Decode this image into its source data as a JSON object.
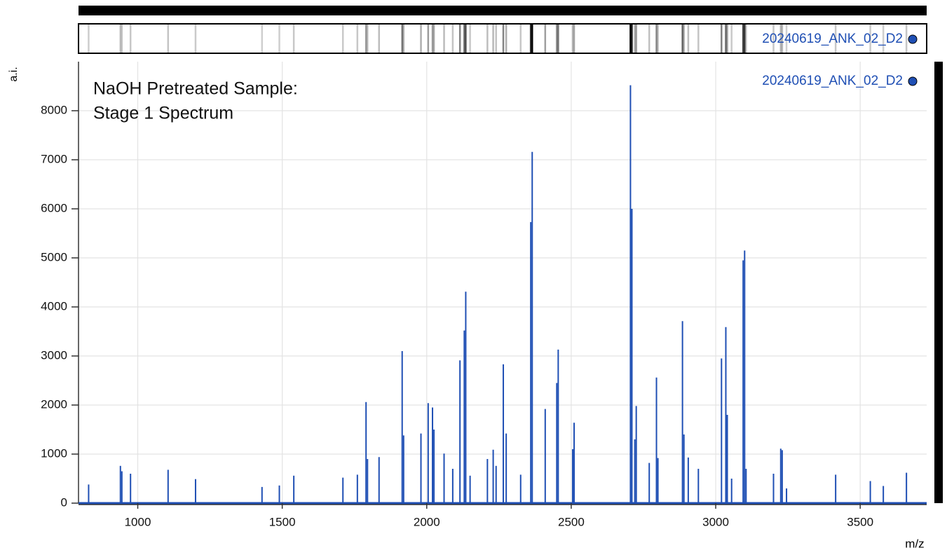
{
  "chart_data": {
    "type": "stem",
    "annotation": [
      "NaOH Pretreated Sample:",
      "Stage 1 Spectrum"
    ],
    "x_label": "m/z",
    "y_label": "a.i.",
    "xlim": [
      795,
      3730
    ],
    "ylim": [
      0,
      9000
    ],
    "xticks": [
      1000,
      1500,
      2000,
      2500,
      3000,
      3500
    ],
    "yticks": [
      0,
      1000,
      2000,
      3000,
      4000,
      5000,
      6000,
      7000,
      8000
    ],
    "grid": true,
    "series": [
      {
        "name": "20240619_ANK_02_D2",
        "color": "#1f4fb4",
        "x": [
          830,
          940,
          945,
          975,
          1105,
          1200,
          1430,
          1490,
          1540,
          1710,
          1760,
          1790,
          1795,
          1835,
          1915,
          1920,
          1980,
          2005,
          2020,
          2025,
          2060,
          2090,
          2115,
          2130,
          2135,
          2150,
          2210,
          2230,
          2240,
          2265,
          2275,
          2325,
          2360,
          2365,
          2410,
          2450,
          2455,
          2505,
          2510,
          2705,
          2710,
          2720,
          2725,
          2770,
          2795,
          2800,
          2885,
          2890,
          2905,
          2940,
          3020,
          3035,
          3040,
          3055,
          3095,
          3100,
          3105,
          3200,
          3225,
          3230,
          3245,
          3415,
          3535,
          3580,
          3660
        ],
        "values": [
          380,
          760,
          650,
          600,
          680,
          490,
          330,
          360,
          560,
          520,
          580,
          2060,
          900,
          940,
          3100,
          1380,
          1420,
          2040,
          1950,
          1500,
          1010,
          700,
          2910,
          3520,
          4310,
          560,
          900,
          1090,
          760,
          2830,
          1420,
          580,
          5730,
          7160,
          1920,
          2450,
          3130,
          1100,
          1640,
          8520,
          6000,
          1300,
          1980,
          820,
          2560,
          920,
          3710,
          1400,
          930,
          700,
          2950,
          3590,
          1800,
          500,
          4950,
          5150,
          700,
          600,
          1110,
          1080,
          300,
          580,
          450,
          350,
          620
        ]
      }
    ]
  }
}
